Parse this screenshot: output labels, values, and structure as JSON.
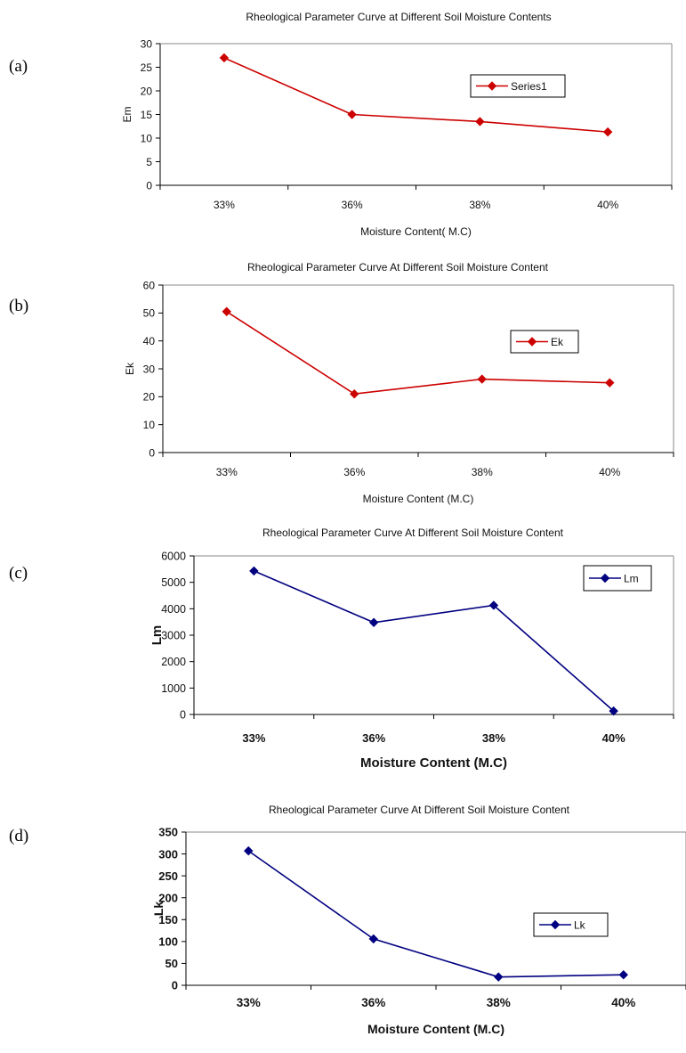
{
  "chart_data": [
    {
      "panel_label": "(a)",
      "type": "line",
      "title": "Rheological Parameter Curve at Different Soil Moisture Contents",
      "categories": [
        "33%",
        "36%",
        "38%",
        "40%"
      ],
      "series": [
        {
          "name": "Series1",
          "values": [
            27,
            15,
            13.5,
            11.3
          ],
          "color": "#cc0000"
        }
      ],
      "xlabel": "Moisture Content( M.C)",
      "ylabel": "Em",
      "ylim": [
        0,
        30
      ],
      "yticks": [
        0,
        5,
        10,
        15,
        20,
        25,
        30
      ],
      "ytick_labels": [
        "0",
        "5",
        "10",
        "15",
        "20",
        "25",
        "30"
      ],
      "legend": "right",
      "grid": false
    },
    {
      "panel_label": "(b)",
      "type": "line",
      "title": "Rheological Parameter Curve At Different Soil Moisture Content",
      "categories": [
        "33%",
        "36%",
        "38%",
        "40%"
      ],
      "series": [
        {
          "name": "Ek",
          "values": [
            50.5,
            21,
            26.3,
            25
          ],
          "color": "#cc0000"
        }
      ],
      "xlabel": "Moisture Content (M.C)",
      "ylabel": "Ek",
      "ylim": [
        0,
        60
      ],
      "yticks": [
        0,
        10,
        20,
        30,
        40,
        50,
        60
      ],
      "ytick_labels": [
        "0",
        "10",
        "20",
        "30",
        "40",
        "50",
        "60"
      ],
      "legend": "right",
      "grid": false
    },
    {
      "panel_label": "(c)",
      "type": "line",
      "title": "Rheological Parameter Curve At Different Soil Moisture Content",
      "categories": [
        "33%",
        "36%",
        "38%",
        "40%"
      ],
      "series": [
        {
          "name": "Lm",
          "values": [
            5430,
            3480,
            4130,
            130
          ],
          "color": "#000080"
        }
      ],
      "xlabel": "Moisture Content (M.C)",
      "ylabel": "Lm",
      "ylim": [
        0,
        6000
      ],
      "yticks": [
        0,
        1000,
        2000,
        3000,
        4000,
        5000,
        6000
      ],
      "ytick_labels": [
        "0",
        "1000",
        "2000",
        "3000",
        "4000",
        "5000",
        "6000"
      ],
      "legend": "top-right",
      "grid": false
    },
    {
      "panel_label": "(d)",
      "type": "line",
      "title": "Rheological Parameter Curve At Different Soil Moisture Content",
      "categories": [
        "33%",
        "36%",
        "38%",
        "40%"
      ],
      "series": [
        {
          "name": "Lk",
          "values": [
            307,
            106,
            19,
            24
          ],
          "color": "#000080"
        }
      ],
      "xlabel": "Moisture Content (M.C)",
      "ylabel": "Lk",
      "ylim": [
        0,
        350
      ],
      "yticks": [
        0,
        50,
        100,
        150,
        200,
        250,
        300,
        350
      ],
      "ytick_labels": [
        "0",
        "50",
        "100",
        "150",
        "200",
        "250",
        "300",
        "350"
      ],
      "legend": "right",
      "grid": false
    }
  ]
}
